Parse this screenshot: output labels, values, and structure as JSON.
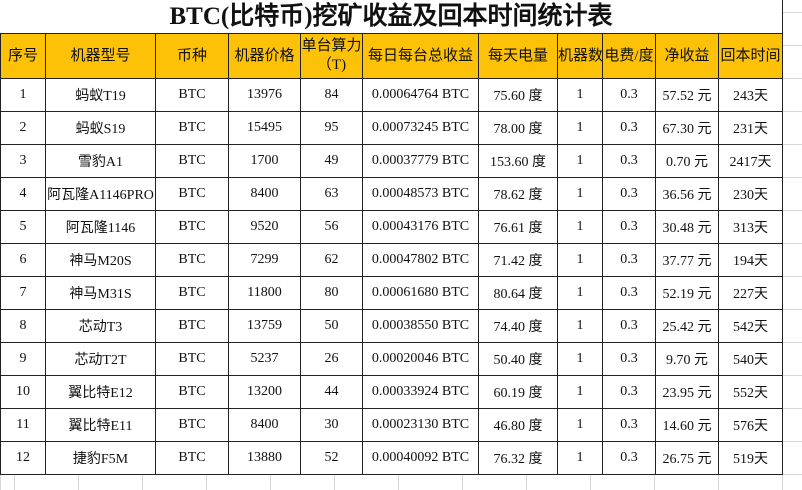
{
  "title": "BTC(比特币)挖矿收益及回本时间统计表",
  "headers": [
    "序号",
    "机器型号",
    "币种",
    "机器价格",
    "单台算力（T)",
    "每日每台总收益",
    "每天电量",
    "机器数",
    "电费/度",
    "净收益",
    "回本时间"
  ],
  "rows": [
    [
      "1",
      "蚂蚁T19",
      "BTC",
      "13976",
      "84",
      "0.00064764 BTC",
      "75.60 度",
      "1",
      "0.3",
      "57.52 元",
      "243天"
    ],
    [
      "2",
      "蚂蚁S19",
      "BTC",
      "15495",
      "95",
      "0.00073245 BTC",
      "78.00 度",
      "1",
      "0.3",
      "67.30 元",
      "231天"
    ],
    [
      "3",
      "雪豹A1",
      "BTC",
      "1700",
      "49",
      "0.00037779 BTC",
      "153.60 度",
      "1",
      "0.3",
      "0.70 元",
      "2417天"
    ],
    [
      "4",
      "阿瓦隆A1146PRO",
      "BTC",
      "8400",
      "63",
      "0.00048573 BTC",
      "78.62 度",
      "1",
      "0.3",
      "36.56 元",
      "230天"
    ],
    [
      "5",
      "阿瓦隆1146",
      "BTC",
      "9520",
      "56",
      "0.00043176 BTC",
      "76.61 度",
      "1",
      "0.3",
      "30.48 元",
      "313天"
    ],
    [
      "6",
      "神马M20S",
      "BTC",
      "7299",
      "62",
      "0.00047802 BTC",
      "71.42 度",
      "1",
      "0.3",
      "37.77 元",
      "194天"
    ],
    [
      "7",
      "神马M31S",
      "BTC",
      "11800",
      "80",
      "0.00061680 BTC",
      "80.64 度",
      "1",
      "0.3",
      "52.19 元",
      "227天"
    ],
    [
      "8",
      "芯动T3",
      "BTC",
      "13759",
      "50",
      "0.00038550 BTC",
      "74.40 度",
      "1",
      "0.3",
      "25.42 元",
      "542天"
    ],
    [
      "9",
      "芯动T2T",
      "BTC",
      "5237",
      "26",
      "0.00020046 BTC",
      "50.40 度",
      "1",
      "0.3",
      "9.70 元",
      "540天"
    ],
    [
      "10",
      "翼比特E12",
      "BTC",
      "13200",
      "44",
      "0.00033924 BTC",
      "60.19 度",
      "1",
      "0.3",
      "23.95 元",
      "552天"
    ],
    [
      "11",
      "翼比特E11",
      "BTC",
      "8400",
      "30",
      "0.00023130 BTC",
      "46.80 度",
      "1",
      "0.3",
      "14.60 元",
      "576天"
    ],
    [
      "12",
      "捷豹F5M",
      "BTC",
      "13880",
      "52",
      "0.00040092 BTC",
      "76.32 度",
      "1",
      "0.3",
      "26.75 元",
      "519天"
    ]
  ],
  "colors": {
    "header_bg": "#fdc107",
    "border": "#222222"
  }
}
